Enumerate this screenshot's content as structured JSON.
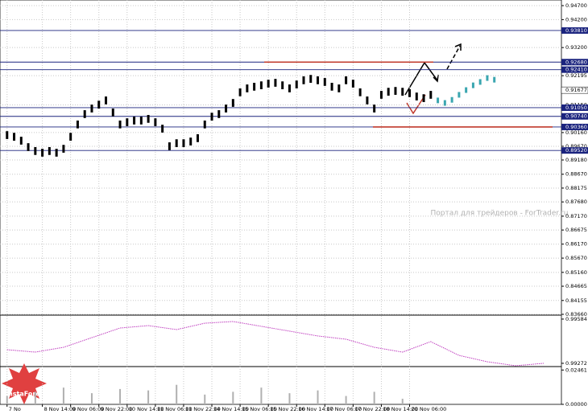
{
  "chart_data": [
    {
      "type": "ohlc",
      "ylim": [
        0.8366,
        0.947
      ],
      "xlim": [
        -1,
        78.5
      ],
      "grid": true,
      "yticks": [
        {
          "value": 0.947,
          "label": "0.94700"
        },
        {
          "value": 0.942,
          "label": "0.94200"
        },
        {
          "value": 0.932,
          "label": "0.93200"
        },
        {
          "value": 0.92195,
          "label": "0.92195"
        },
        {
          "value": 0.9115,
          "label": "0.91150"
        },
        {
          "value": 0.9016,
          "label": "0.90160"
        },
        {
          "value": 0.8967,
          "label": "0.89670"
        },
        {
          "value": 0.8918,
          "label": "0.89180"
        },
        {
          "value": 0.8867,
          "label": "0.88670"
        },
        {
          "value": 0.88175,
          "label": "0.88175"
        },
        {
          "value": 0.8768,
          "label": "0.87680"
        },
        {
          "value": 0.8717,
          "label": "0.87170"
        },
        {
          "value": 0.86675,
          "label": "0.86675"
        },
        {
          "value": 0.8617,
          "label": "0.86170"
        },
        {
          "value": 0.8567,
          "label": "0.85670"
        },
        {
          "value": 0.8516,
          "label": "0.85160"
        },
        {
          "value": 0.84665,
          "label": "0.84665"
        },
        {
          "value": 0.84155,
          "label": "0.84155"
        },
        {
          "value": 0.8366,
          "label": "0.83660"
        }
      ],
      "xticks": [
        {
          "value": 0,
          "label": "7 No"
        },
        {
          "value": 5,
          "label": "8 Nov 14:00"
        },
        {
          "value": 9,
          "label": "9 Nov 06:00"
        },
        {
          "value": 13,
          "label": "9 Nov 22:00"
        },
        {
          "value": 17,
          "label": "10 Nov 14:00"
        },
        {
          "value": 21,
          "label": "11 Nov 06:00"
        },
        {
          "value": 25,
          "label": "11 Nov 22:00"
        },
        {
          "value": 29,
          "label": "14 Nov 14:00"
        },
        {
          "value": 33,
          "label": "15 Nov 06:00"
        },
        {
          "value": 37,
          "label": "15 Nov 22:00"
        },
        {
          "value": 41,
          "label": "16 Nov 14:00"
        },
        {
          "value": 45,
          "label": "17 Nov 06:00"
        },
        {
          "value": 49,
          "label": "17 Nov 22:00"
        },
        {
          "value": 53,
          "label": "18 Nov 14:00"
        },
        {
          "value": 57,
          "label": "21 Nov 06:00"
        }
      ],
      "levels": [
        {
          "value": 0.9381,
          "label": "0.93810",
          "color": "#1a237e"
        },
        {
          "value": 0.9268,
          "label": "0.92680",
          "color": "#1a237e"
        },
        {
          "value": 0.9241,
          "label": "0.92410",
          "color": "#1a237e"
        },
        {
          "value": 0.9105,
          "label": "0.91050",
          "color": "#1a237e"
        },
        {
          "value": 0.9074,
          "label": "0.90740",
          "color": "#1a237e"
        },
        {
          "value": 0.9036,
          "label": "0.90360",
          "color": "#1a237e"
        },
        {
          "value": 0.8952,
          "label": "0.89520",
          "color": "#1a237e"
        }
      ],
      "red_lines": [
        {
          "value": 0.9268,
          "color": "#c0392b"
        },
        {
          "value": 0.9036,
          "color": "#c0392b"
        }
      ],
      "current_price": {
        "value": 0.91677,
        "label": "0.91677"
      },
      "watermark": "Портал для трейдеров - ForTrader.ru",
      "logo": "InstaForex",
      "series": [
        {
          "color": "#000000",
          "x": [
            0,
            1,
            2,
            3,
            4,
            5,
            6,
            7,
            8,
            9,
            10,
            11,
            12,
            13,
            14,
            15,
            16,
            17,
            18,
            19,
            20,
            21,
            22,
            23,
            24,
            25,
            26,
            27,
            28,
            29,
            30,
            31,
            32,
            33,
            34,
            35,
            36,
            37,
            38,
            39,
            40,
            41,
            42,
            43,
            44,
            45,
            46,
            47,
            48,
            49,
            50,
            51,
            52,
            53,
            54,
            55,
            56,
            57,
            58,
            59,
            60
          ],
          "high": [
            0.9021,
            0.9015,
            0.9001,
            0.8978,
            0.8964,
            0.8958,
            0.8964,
            0.8958,
            0.8972,
            0.9015,
            0.9059,
            0.9096,
            0.9116,
            0.913,
            0.9145,
            0.9102,
            0.9059,
            0.9067,
            0.9073,
            0.9073,
            0.9079,
            0.9067,
            0.9044,
            0.8981,
            0.8992,
            0.8992,
            0.8998,
            0.901,
            0.9059,
            0.9087,
            0.9096,
            0.9116,
            0.9136,
            0.9174,
            0.9188,
            0.9194,
            0.9199,
            0.9205,
            0.9208,
            0.9199,
            0.9188,
            0.9202,
            0.9217,
            0.9222,
            0.9217,
            0.9211,
            0.9194,
            0.9188,
            0.9217,
            0.9205,
            0.9174,
            0.9145,
            0.9116,
            0.9165,
            0.9176,
            0.9179,
            0.9176,
            0.9171,
            0.9159,
            0.9153,
            0.9165
          ],
          "low": [
            0.8993,
            0.8987,
            0.8973,
            0.895,
            0.8936,
            0.893,
            0.8936,
            0.893,
            0.8944,
            0.8987,
            0.9031,
            0.9068,
            0.9088,
            0.9102,
            0.9117,
            0.9074,
            0.9031,
            0.9039,
            0.9045,
            0.9045,
            0.9051,
            0.9039,
            0.9016,
            0.8953,
            0.8964,
            0.8964,
            0.897,
            0.8982,
            0.9031,
            0.9059,
            0.9068,
            0.9088,
            0.9108,
            0.9146,
            0.916,
            0.9166,
            0.9171,
            0.9177,
            0.918,
            0.9171,
            0.916,
            0.9174,
            0.9189,
            0.9194,
            0.9189,
            0.9183,
            0.9166,
            0.916,
            0.9189,
            0.9177,
            0.9146,
            0.9117,
            0.9088,
            0.9137,
            0.9148,
            0.9151,
            0.9148,
            0.9143,
            0.9131,
            0.9125,
            0.9137
          ]
        },
        {
          "color": "#3aa6b0",
          "x": [
            61,
            62,
            63,
            64,
            65,
            66,
            67,
            68,
            69
          ],
          "high": [
            0.9141,
            0.9132,
            0.9143,
            0.9161,
            0.9178,
            0.9195,
            0.9207,
            0.9221,
            0.9215
          ],
          "low": [
            0.9121,
            0.9112,
            0.9123,
            0.9141,
            0.9158,
            0.9175,
            0.9187,
            0.9201,
            0.9195
          ]
        }
      ]
    },
    {
      "type": "line",
      "color": "#c040c0",
      "ylim": [
        0.99249,
        0.99612
      ],
      "xlim": [
        -1,
        78.5
      ],
      "yticks": [
        {
          "value": 0.99584,
          "label": "0.99584"
        },
        {
          "value": 0.99272,
          "label": "0.99272"
        }
      ],
      "x": [
        0,
        4,
        8,
        12,
        16,
        20,
        24,
        28,
        32,
        36,
        40,
        44,
        48,
        52,
        56,
        60,
        64,
        68,
        72,
        76
      ],
      "values": [
        0.99368,
        0.99351,
        0.99385,
        0.99453,
        0.99521,
        0.99538,
        0.9951,
        0.99555,
        0.99567,
        0.99533,
        0.99499,
        0.99465,
        0.99442,
        0.99385,
        0.99351,
        0.99425,
        0.99328,
        0.99283,
        0.99255,
        0.99272
      ]
    },
    {
      "type": "bar",
      "color": "#b0b0b0",
      "ylim": [
        0,
        0.0265
      ],
      "xlim": [
        -1,
        78.5
      ],
      "yticks": [
        {
          "value": 0.02461,
          "label": "0.02461"
        },
        {
          "value": 0,
          "label": "0.00000"
        }
      ],
      "x": [
        0,
        4,
        8,
        12,
        16,
        20,
        24,
        28,
        32,
        36,
        40,
        44,
        48,
        52,
        56
      ],
      "values": [
        0.006,
        0.009,
        0.012,
        0.008,
        0.011,
        0.01,
        0.014,
        0.007,
        0.009,
        0.012,
        0.008,
        0.01,
        0.006,
        0.009,
        0.004
      ]
    }
  ]
}
